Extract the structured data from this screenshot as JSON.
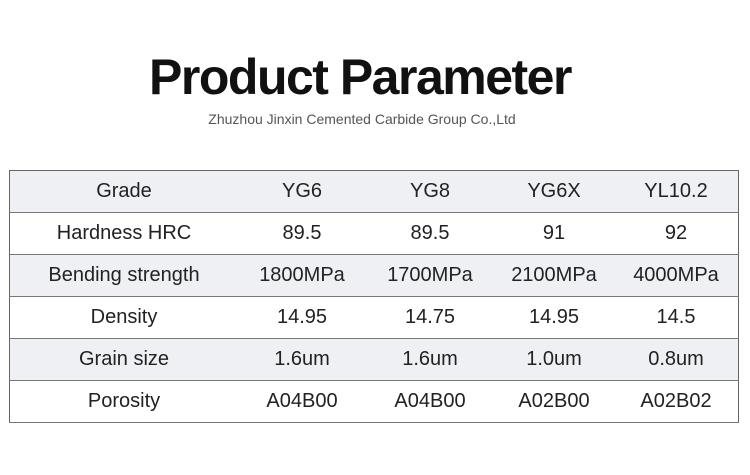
{
  "header": {
    "title": "Product Parameter",
    "subtitle": "Zhuzhou Jinxin Cemented Carbide Group Co.,Ltd"
  },
  "table": {
    "columns": [
      "Grade",
      "YG6",
      "YG8",
      "YG6X",
      "YL10.2"
    ],
    "rows": [
      [
        "Hardness HRC",
        "89.5",
        "89.5",
        "91",
        "92"
      ],
      [
        "Bending strength",
        "1800MPa",
        "1700MPa",
        "2100MPa",
        "4000MPa"
      ],
      [
        "Density",
        "14.95",
        "14.75",
        "14.95",
        "14.5"
      ],
      [
        "Grain size",
        "1.6um",
        "1.6um",
        "1.0um",
        "0.8um"
      ],
      [
        "Porosity",
        "A04B00",
        "A04B00",
        "A02B00",
        "A02B02"
      ]
    ]
  }
}
